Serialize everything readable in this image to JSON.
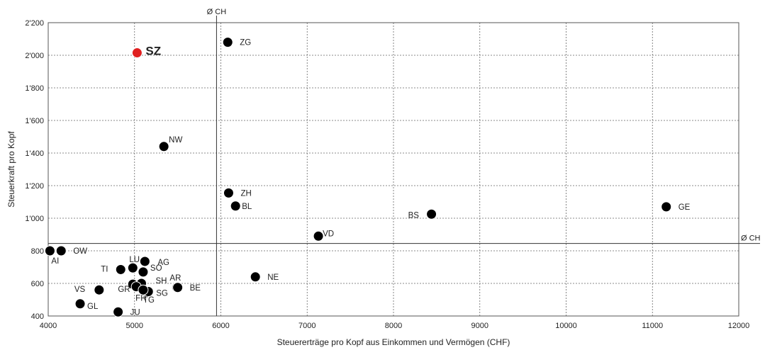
{
  "chart_data": {
    "type": "scatter",
    "xlabel": "Steuererträge pro Kopf aus Einkommen und Vermögen (CHF)",
    "ylabel": "Steuerkraft pro Kopf",
    "xlim": [
      4000,
      12000
    ],
    "ylim": [
      400,
      2200
    ],
    "x_ticks": [
      4000,
      5000,
      6000,
      7000,
      8000,
      9000,
      10000,
      11000,
      12000
    ],
    "x_tick_labels": [
      "4000",
      "5000",
      "6000",
      "7000",
      "8000",
      "9000",
      "10000",
      "11000",
      "12000"
    ],
    "y_ticks": [
      400,
      600,
      800,
      1000,
      1200,
      1400,
      1600,
      1800,
      2000,
      2200
    ],
    "y_tick_labels": [
      "400",
      "600",
      "800",
      "1'000",
      "1'200",
      "1'400",
      "1'600",
      "1'800",
      "2'000",
      "2'200"
    ],
    "grid": "dashed",
    "reference_lines": {
      "vertical": {
        "x": 5950,
        "label": "Ø CH"
      },
      "horizontal": {
        "y": 845,
        "label": "Ø CH"
      }
    },
    "point_color": "#000000",
    "highlight_color": "#e02020",
    "points": [
      {
        "label": "SZ",
        "x": 5030,
        "y": 2015,
        "highlight": true
      },
      {
        "label": "ZG",
        "x": 6080,
        "y": 2080
      },
      {
        "label": "NW",
        "x": 5340,
        "y": 1440
      },
      {
        "label": "ZH",
        "x": 6090,
        "y": 1155
      },
      {
        "label": "BL",
        "x": 6170,
        "y": 1075
      },
      {
        "label": "BS",
        "x": 8440,
        "y": 1025
      },
      {
        "label": "GE",
        "x": 11160,
        "y": 1070
      },
      {
        "label": "VD",
        "x": 7130,
        "y": 890
      },
      {
        "label": "AI",
        "x": 4020,
        "y": 800
      },
      {
        "label": "OW",
        "x": 4150,
        "y": 800
      },
      {
        "label": "LU",
        "x": 4980,
        "y": 695
      },
      {
        "label": "AG",
        "x": 5120,
        "y": 735
      },
      {
        "label": "SO",
        "x": 5100,
        "y": 670
      },
      {
        "label": "TI",
        "x": 4840,
        "y": 685
      },
      {
        "label": "SH",
        "x": 5080,
        "y": 600
      },
      {
        "label": "AR",
        "x": 5490,
        "y": 575
      },
      {
        "label": "BE",
        "x": 5500,
        "y": 575
      },
      {
        "label": "GR",
        "x": 4980,
        "y": 595
      },
      {
        "label": "FR",
        "x": 5020,
        "y": 580
      },
      {
        "label": "SG",
        "x": 5160,
        "y": 550
      },
      {
        "label": "TG",
        "x": 5100,
        "y": 560
      },
      {
        "label": "NE",
        "x": 6400,
        "y": 640
      },
      {
        "label": "VS",
        "x": 4590,
        "y": 560
      },
      {
        "label": "GL",
        "x": 4370,
        "y": 475
      },
      {
        "label": "JU",
        "x": 4810,
        "y": 425
      }
    ]
  }
}
